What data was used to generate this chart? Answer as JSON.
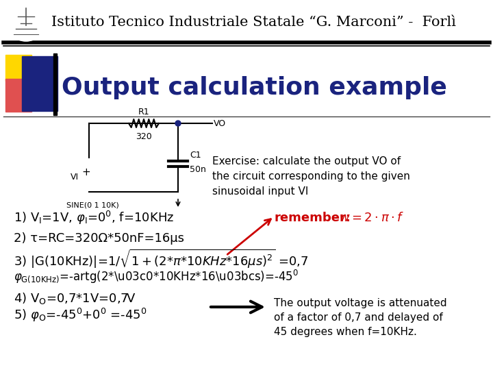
{
  "header_text": "Istituto Tecnico Industriale Statale “G. Marconi” -  Forlì",
  "title_text": "Output calculation example",
  "exercise_text": "Exercise: calculate the output VO of\nthe circuit corresponding to the given\nsinusoidal input VI",
  "line2": "2) τ=RC=320Ω*50nF=16μs",
  "output_box_text": "The output voltage is attenuated\nof a factor of 0,7 and delayed of\n45 degrees when f=10KHz.",
  "bg_color": "#ffffff",
  "title_color": "#1a237e",
  "body_color": "#000000",
  "remember_color": "#cc0000",
  "yellow_color": "#FFD700",
  "red_color": "#e05050",
  "blue_color": "#1a237e"
}
